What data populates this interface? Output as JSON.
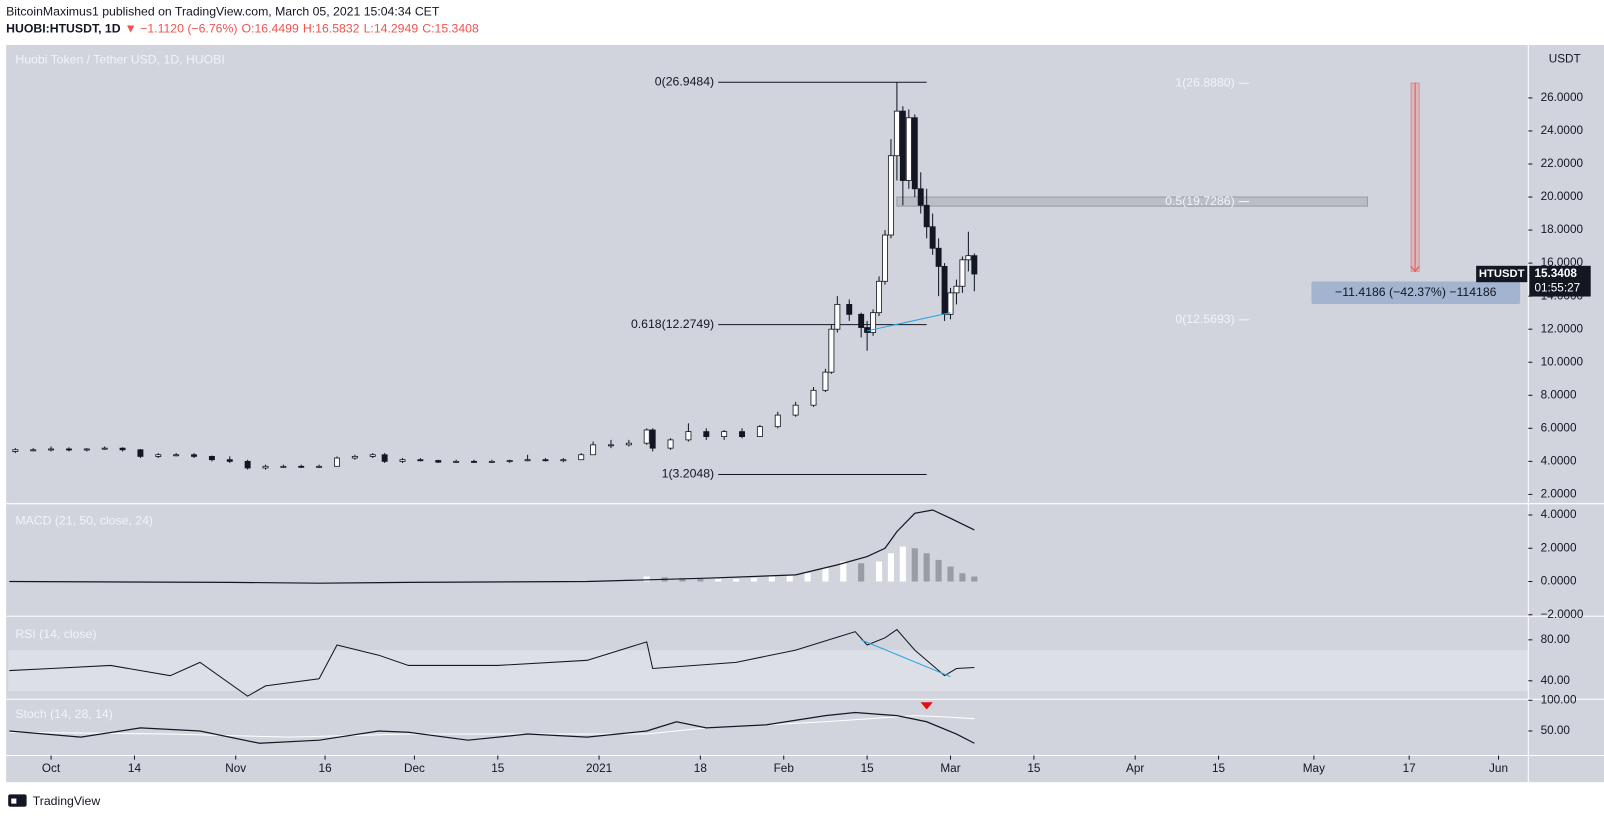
{
  "header": {
    "publisher": "BitcoinMaximus1 published on TradingView.com, March 05, 2021 15:04:34 CET",
    "symbol": "HUOBI:HTUSDT, 1D",
    "change": "▼ −1.1120 (−6.76%)",
    "ohlc": [
      "O:16.4499",
      "H:16.5832",
      "L:14.2949",
      "C:15.3408"
    ]
  },
  "chart_data": {
    "type": "candlestick",
    "title": "Huobi Token / Tether USD, 1D, HUOBI",
    "currency": "USDT",
    "up_color": "#ffffff",
    "down_color": "#131722",
    "xlim": [
      -7.2,
      248
    ],
    "xticks": [
      {
        "value": 0,
        "label": "Oct"
      },
      14,
      {
        "value": 31,
        "label": "Nov"
      },
      {
        "value": 46,
        "label": "16"
      },
      {
        "value": 61,
        "label": "Dec"
      },
      {
        "value": 75,
        "label": "15"
      },
      {
        "value": 92,
        "label": "2021"
      },
      {
        "value": 109,
        "label": "18"
      },
      {
        "value": 123,
        "label": "Feb"
      },
      {
        "value": 137,
        "label": "15"
      },
      {
        "value": 151,
        "label": "Mar"
      },
      {
        "value": 165,
        "label": "15"
      },
      {
        "value": 182,
        "label": "Apr"
      },
      {
        "value": 196,
        "label": "15"
      },
      {
        "value": 212,
        "label": "May"
      },
      {
        "value": 228,
        "label": "17"
      },
      {
        "value": 243,
        "label": "Jun"
      }
    ],
    "ylim": [
      1.5,
      29.2
    ],
    "yticks": [
      {
        "value": 2,
        "label": "2.0000"
      },
      {
        "value": 4,
        "label": "4.0000"
      },
      {
        "value": 6,
        "label": "6.0000"
      },
      {
        "value": 8,
        "label": "8.0000"
      },
      {
        "value": 10,
        "label": "10.0000"
      },
      {
        "value": 12,
        "label": "12.0000"
      },
      {
        "value": 14,
        "label": "14.0000"
      },
      {
        "value": 16,
        "label": "16.0000"
      },
      {
        "value": 18,
        "label": "18.0000"
      },
      {
        "value": 20,
        "label": "20.0000"
      },
      {
        "value": 22,
        "label": "22.0000"
      },
      {
        "value": 24,
        "label": "24.0000"
      },
      {
        "value": 26,
        "label": "26.0000"
      }
    ],
    "candles": [
      [
        -6,
        4.6,
        4.8,
        4.5,
        4.7
      ],
      [
        -3,
        4.7,
        4.8,
        4.6,
        4.7
      ],
      [
        0,
        4.7,
        4.9,
        4.6,
        4.75
      ],
      [
        3,
        4.75,
        4.85,
        4.6,
        4.7
      ],
      [
        6,
        4.7,
        4.8,
        4.6,
        4.75
      ],
      [
        9,
        4.75,
        4.9,
        4.7,
        4.8
      ],
      [
        12,
        4.8,
        4.85,
        4.6,
        4.7
      ],
      [
        15,
        4.7,
        4.75,
        4.2,
        4.3
      ],
      [
        18,
        4.3,
        4.5,
        4.2,
        4.4
      ],
      [
        21,
        4.4,
        4.5,
        4.3,
        4.4
      ],
      [
        24,
        4.4,
        4.5,
        4.2,
        4.3
      ],
      [
        27,
        4.3,
        4.35,
        4.0,
        4.1
      ],
      [
        30,
        4.1,
        4.3,
        3.9,
        4.0
      ],
      [
        33,
        4.0,
        4.1,
        3.5,
        3.6
      ],
      [
        36,
        3.6,
        3.8,
        3.5,
        3.7
      ],
      [
        39,
        3.7,
        3.8,
        3.6,
        3.7
      ],
      [
        42,
        3.7,
        3.8,
        3.6,
        3.65
      ],
      [
        45,
        3.65,
        3.8,
        3.6,
        3.7
      ],
      [
        48,
        3.7,
        4.3,
        3.7,
        4.2
      ],
      [
        51,
        4.2,
        4.4,
        4.1,
        4.3
      ],
      [
        54,
        4.3,
        4.5,
        4.2,
        4.4
      ],
      [
        56,
        4.4,
        4.5,
        3.9,
        4.0
      ],
      [
        59,
        4.0,
        4.2,
        3.9,
        4.1
      ],
      [
        62,
        4.1,
        4.2,
        4.0,
        4.05
      ],
      [
        65,
        4.05,
        4.1,
        3.9,
        3.95
      ],
      [
        68,
        3.95,
        4.1,
        3.9,
        4.0
      ],
      [
        71,
        4.0,
        4.1,
        3.9,
        3.95
      ],
      [
        74,
        3.95,
        4.1,
        3.9,
        4.0
      ],
      [
        77,
        4.0,
        4.1,
        3.9,
        4.05
      ],
      [
        80,
        4.05,
        4.4,
        4.0,
        4.1
      ],
      [
        83,
        4.1,
        4.2,
        4.0,
        4.05
      ],
      [
        86,
        4.05,
        4.2,
        3.95,
        4.1
      ],
      [
        89,
        4.1,
        4.5,
        4.1,
        4.4
      ],
      [
        91,
        4.4,
        5.2,
        4.4,
        5.0
      ],
      [
        94,
        5.0,
        5.3,
        4.8,
        5.0
      ],
      [
        97,
        5.0,
        5.3,
        4.9,
        5.1
      ],
      [
        100,
        5.1,
        6.0,
        5.0,
        5.9
      ],
      [
        101,
        5.9,
        6.0,
        4.6,
        4.8
      ],
      [
        104,
        4.8,
        5.4,
        4.7,
        5.3
      ],
      [
        107,
        5.3,
        6.3,
        5.2,
        5.8
      ],
      [
        110,
        5.8,
        6.0,
        5.3,
        5.5
      ],
      [
        113,
        5.5,
        5.9,
        5.3,
        5.8
      ],
      [
        116,
        5.8,
        6.0,
        5.4,
        5.5
      ],
      [
        119,
        5.5,
        6.2,
        5.5,
        6.1
      ],
      [
        122,
        6.1,
        7.0,
        6.0,
        6.8
      ],
      [
        125,
        6.8,
        7.6,
        6.7,
        7.4
      ],
      [
        128,
        7.4,
        8.5,
        7.3,
        8.3
      ],
      [
        130,
        8.3,
        9.6,
        8.2,
        9.4
      ],
      [
        131,
        9.4,
        12.3,
        9.3,
        12.0
      ],
      [
        132,
        12.0,
        14.0,
        11.8,
        13.5
      ],
      [
        134,
        13.5,
        13.8,
        12.5,
        12.9
      ],
      [
        136,
        12.9,
        13.0,
        11.5,
        12.1
      ],
      [
        137,
        12.1,
        12.5,
        10.7,
        11.8
      ],
      [
        138,
        11.8,
        13.2,
        11.6,
        13.0
      ],
      [
        139,
        13.0,
        15.2,
        12.8,
        14.9
      ],
      [
        140,
        14.9,
        18.0,
        14.7,
        17.7
      ],
      [
        141,
        17.7,
        23.5,
        17.5,
        22.5
      ],
      [
        142,
        22.5,
        26.95,
        21.0,
        25.2
      ],
      [
        143,
        25.2,
        25.5,
        19.5,
        21.0
      ],
      [
        144,
        21.0,
        25.3,
        20.5,
        24.8
      ],
      [
        145,
        24.8,
        25.0,
        20.0,
        20.5
      ],
      [
        146,
        20.5,
        21.5,
        19.0,
        19.5
      ],
      [
        147,
        19.5,
        20.5,
        17.5,
        18.2
      ],
      [
        148,
        18.2,
        19.0,
        16.5,
        16.9
      ],
      [
        149,
        16.9,
        17.5,
        14.0,
        15.8
      ],
      [
        150,
        15.8,
        16.0,
        12.5,
        12.9
      ],
      [
        151,
        12.9,
        14.5,
        12.6,
        14.2
      ],
      [
        152,
        14.2,
        15.0,
        13.5,
        14.6
      ],
      [
        153,
        14.6,
        16.4,
        14.2,
        16.2
      ],
      [
        154,
        16.2,
        17.9,
        15.5,
        16.45
      ],
      [
        155,
        16.4499,
        16.5832,
        14.2949,
        15.3408
      ]
    ],
    "fib_left_x": [
      112,
      147
    ],
    "fib_left": [
      {
        "value": 26.9484,
        "label": "0(26.9484)"
      },
      {
        "value": 12.2749,
        "label": "0.618(12.2749)"
      },
      {
        "value": 3.2048,
        "label": "1(3.2048)"
      }
    ],
    "fib_right": [
      {
        "value": 26.888,
        "label": "1(26.8880)"
      },
      {
        "value": 19.7286,
        "label": "0.5(19.7286)"
      },
      {
        "value": 12.5693,
        "label": "0(12.5693)"
      }
    ],
    "zone": {
      "x": [
        142,
        221
      ],
      "y": [
        19.45,
        20.0
      ]
    },
    "measure": {
      "x": 229,
      "from": 26.9,
      "to": 15.5,
      "label": "−11.4186 (−42.37%) −114186"
    },
    "trendline": {
      "x": [
        137,
        151
      ],
      "y": [
        11.9,
        13.0
      ]
    },
    "last_price": {
      "name": "HTUSDT",
      "value": 15.3408,
      "countdown": "01:55:27"
    }
  },
  "macd": {
    "title": "MACD (21, 50, close, 24)",
    "ylim": [
      -2.03,
      4.68
    ],
    "yticks": [
      {
        "value": 4,
        "label": "4.0000"
      },
      {
        "value": 2,
        "label": "2.0000"
      },
      {
        "value": 0,
        "label": "0.0000"
      },
      {
        "value": -2,
        "label": "−2.0000"
      }
    ],
    "line": {
      "x": [
        -7,
        30,
        45,
        60,
        90,
        110,
        125,
        132,
        137,
        140,
        142,
        145,
        148,
        151,
        155
      ],
      "y": [
        0,
        -0.05,
        -0.1,
        -0.05,
        0,
        0.2,
        0.4,
        1.0,
        1.5,
        2.0,
        3.0,
        4.1,
        4.3,
        3.8,
        3.1
      ]
    },
    "histogram": {
      "x": [
        100,
        103,
        106,
        109,
        112,
        115,
        118,
        121,
        124,
        127,
        130,
        133,
        136,
        139,
        141,
        143,
        145,
        147,
        149,
        151,
        153,
        155
      ],
      "values": [
        0.3,
        0.25,
        0.2,
        0.15,
        0.15,
        0.15,
        0.2,
        0.3,
        0.4,
        0.5,
        0.8,
        1.2,
        1.1,
        1.2,
        1.7,
        2.1,
        2.0,
        1.7,
        1.3,
        0.9,
        0.5,
        0.3
      ]
    },
    "up_color": "#ffffff",
    "down_color": "#9a9ca3"
  },
  "rsi": {
    "title": "RSI (14, close)",
    "ylim": [
      23,
      102
    ],
    "band": [
      30,
      70
    ],
    "yticks": [
      {
        "value": 80,
        "label": "80.00"
      },
      {
        "value": 40,
        "label": "40.00"
      }
    ],
    "line": {
      "x": [
        -7,
        0,
        10,
        20,
        25,
        33,
        36,
        45,
        48,
        55,
        60,
        75,
        90,
        100,
        101,
        115,
        125,
        135,
        137,
        140,
        142,
        145,
        150,
        152,
        155
      ],
      "y": [
        50,
        52,
        55,
        45,
        58,
        25,
        35,
        42,
        75,
        65,
        55,
        55,
        60,
        78,
        52,
        58,
        70,
        88,
        75,
        82,
        90,
        70,
        45,
        52,
        53
      ]
    },
    "trendline": {
      "x": [
        136,
        151
      ],
      "y": [
        80,
        44
      ]
    }
  },
  "stoch": {
    "title": "Stoch (14, 28, 14)",
    "ylim": [
      11.7,
      101.7
    ],
    "yticks": [
      {
        "value": 100,
        "label": "100.00"
      },
      {
        "value": 50,
        "label": "50.00"
      }
    ],
    "k": {
      "x": [
        -7,
        5,
        15,
        25,
        35,
        45,
        55,
        60,
        70,
        80,
        90,
        100,
        105,
        110,
        120,
        130,
        135,
        142,
        147,
        152,
        155
      ],
      "y": [
        50,
        40,
        55,
        50,
        30,
        35,
        50,
        48,
        35,
        45,
        40,
        50,
        65,
        55,
        60,
        75,
        80,
        75,
        65,
        45,
        30
      ]
    },
    "d": {
      "x": [
        -7,
        20,
        40,
        60,
        80,
        100,
        110,
        130,
        145,
        150,
        155
      ],
      "y": [
        48,
        45,
        40,
        45,
        45,
        45,
        55,
        65,
        75,
        73,
        70
      ]
    },
    "signal_x": 147
  },
  "footer": {
    "brand": "TradingView"
  }
}
